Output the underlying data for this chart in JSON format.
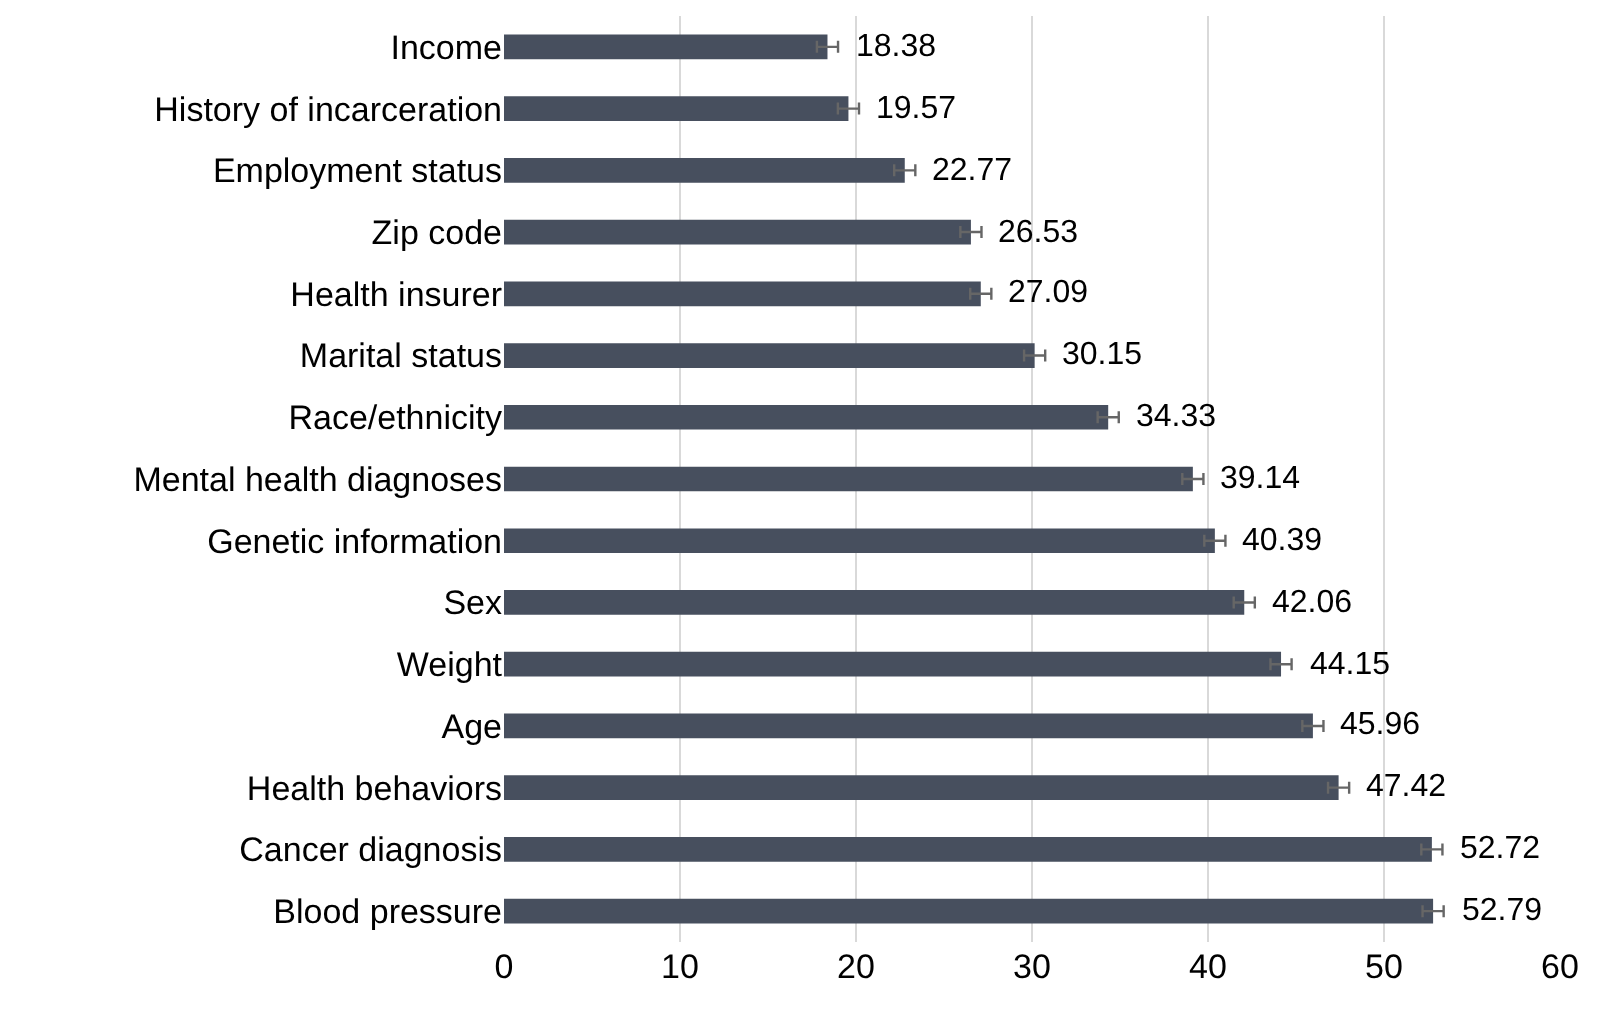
{
  "chart_data": {
    "type": "bar",
    "orientation": "horizontal",
    "categories": [
      "Income",
      "History of incarceration",
      "Employment status",
      "Zip code",
      "Health insurer",
      "Marital status",
      "Race/ethnicity",
      "Mental health diagnoses",
      "Genetic information",
      "Sex",
      "Weight",
      "Age",
      "Health behaviors",
      "Cancer diagnosis",
      "Blood pressure"
    ],
    "values": [
      18.38,
      19.57,
      22.77,
      26.53,
      27.09,
      30.15,
      34.33,
      39.14,
      40.39,
      42.06,
      44.15,
      45.96,
      47.42,
      52.72,
      52.79
    ],
    "errors": [
      0.6,
      0.6,
      0.6,
      0.6,
      0.6,
      0.6,
      0.6,
      0.6,
      0.6,
      0.6,
      0.6,
      0.6,
      0.6,
      0.6,
      0.6
    ],
    "color": "#474f5e",
    "xlim": [
      0,
      60
    ],
    "xticks": [
      0,
      10,
      20,
      30,
      40,
      50,
      60
    ],
    "grid": "x",
    "data_labels": true
  }
}
